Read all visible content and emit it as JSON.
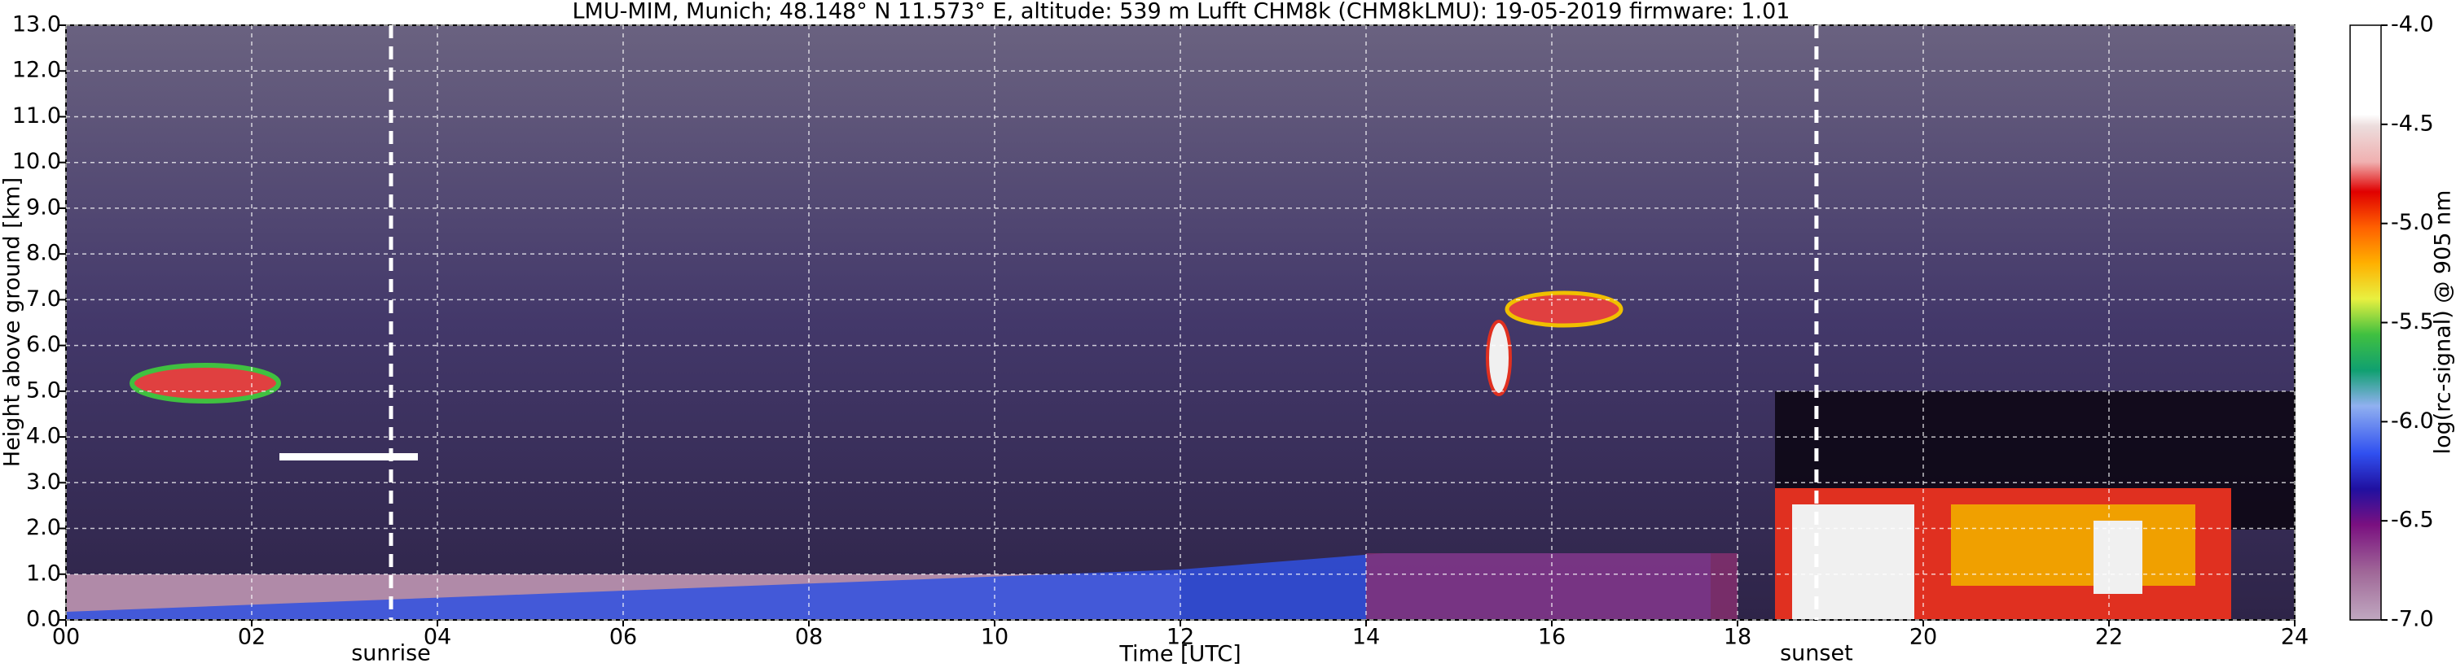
{
  "chart_data": {
    "type": "heatmap",
    "title": "LMU-MIM, Munich; 48.148° N 11.573° E, altitude: 539 m    Lufft CHM8k (CHM8kLMU): 19-05-2019    firmware: 1.01",
    "xlabel": "Time [UTC]",
    "ylabel": "Height above ground [km]",
    "colorbar_label": "log(rc-signal) @ 905 nm",
    "xlim": [
      0,
      24
    ],
    "xticks": [
      {
        "value": 0,
        "label": "00"
      },
      {
        "value": 2,
        "label": "02"
      },
      {
        "value": 4,
        "label": "04"
      },
      {
        "value": 6,
        "label": "06"
      },
      {
        "value": 8,
        "label": "08"
      },
      10,
      12,
      14,
      16,
      18,
      20,
      22,
      24
    ],
    "ylim": [
      0,
      13
    ],
    "yticks": [
      {
        "value": 0,
        "label": "0.0"
      },
      {
        "value": 1,
        "label": "1.0"
      },
      {
        "value": 2,
        "label": "2.0"
      },
      {
        "value": 3,
        "label": "3.0"
      },
      {
        "value": 4,
        "label": "4.0"
      },
      {
        "value": 5,
        "label": "5.0"
      },
      {
        "value": 6,
        "label": "6.0"
      },
      {
        "value": 7,
        "label": "7.0"
      },
      {
        "value": 8,
        "label": "8.0"
      },
      {
        "value": 9,
        "label": "9.0"
      },
      {
        "value": 10,
        "label": "10.0"
      },
      {
        "value": 11,
        "label": "11.0"
      },
      {
        "value": 12,
        "label": "12.0"
      },
      {
        "value": 13,
        "label": "13.0"
      }
    ],
    "clim": [
      -7,
      -4
    ],
    "cticks": [
      {
        "value": -4,
        "label": "-4.0"
      },
      -4.5,
      {
        "value": -5,
        "label": "-5.0"
      },
      -5.5,
      {
        "value": -6,
        "label": "-6.0"
      },
      -6.5,
      {
        "value": -7,
        "label": "-7.0"
      }
    ],
    "grid": true,
    "annotations": [
      {
        "text": "sunrise",
        "x": 3.5
      },
      {
        "text": "sunset",
        "x": 18.85
      }
    ]
  }
}
